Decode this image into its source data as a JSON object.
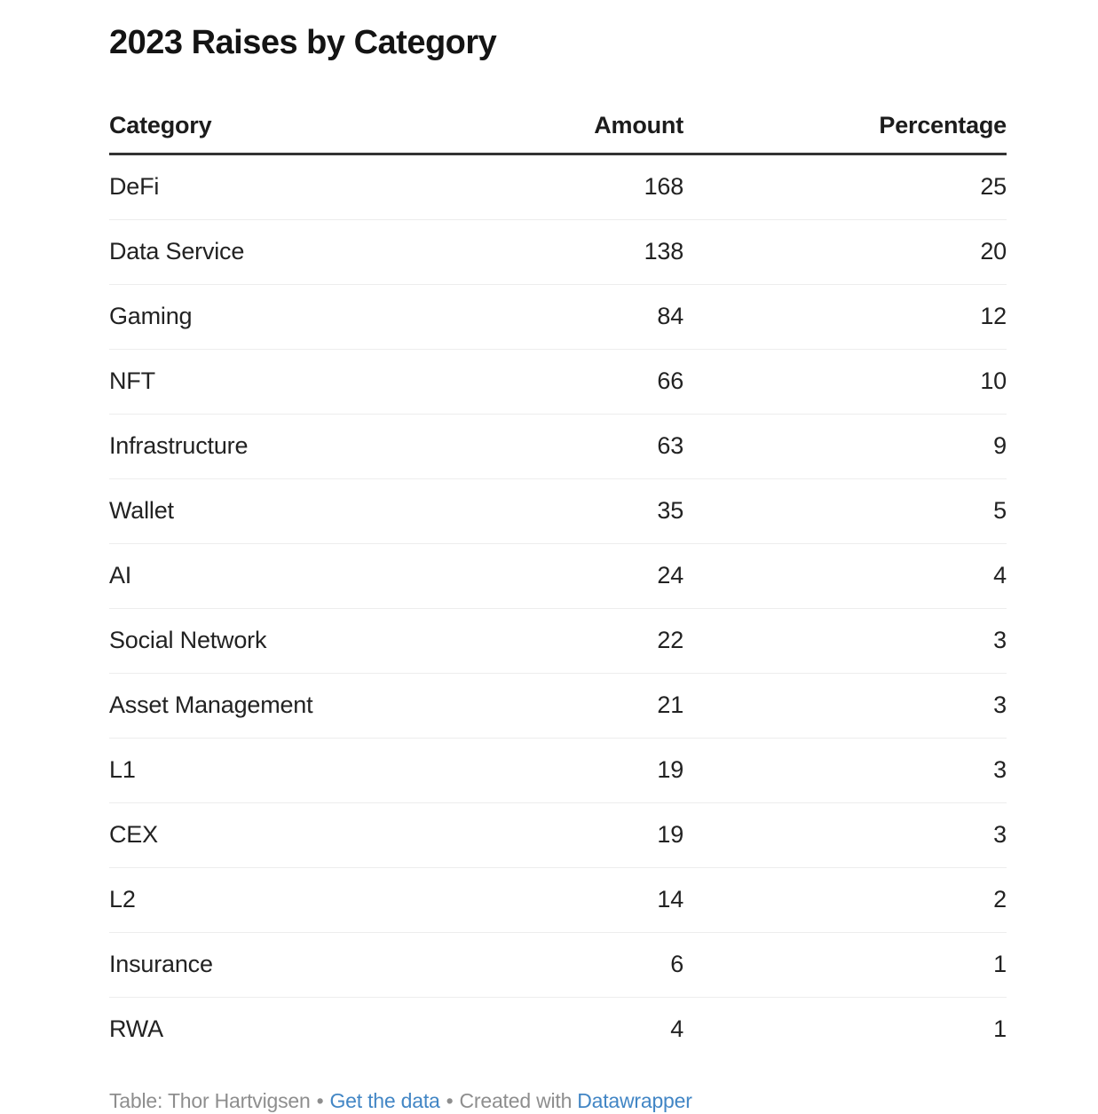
{
  "title": "2023 Raises by Category",
  "chart_data": {
    "type": "table",
    "title": "2023 Raises by Category",
    "columns": [
      "Category",
      "Amount",
      "Percentage"
    ],
    "column_align": [
      "left",
      "right",
      "right"
    ],
    "rows": [
      [
        "DeFi",
        168,
        25
      ],
      [
        "Data Service",
        138,
        20
      ],
      [
        "Gaming",
        84,
        12
      ],
      [
        "NFT",
        66,
        10
      ],
      [
        "Infrastructure",
        63,
        9
      ],
      [
        "Wallet",
        35,
        5
      ],
      [
        "AI",
        24,
        4
      ],
      [
        "Social Network",
        22,
        3
      ],
      [
        "Asset Management",
        21,
        3
      ],
      [
        "L1",
        19,
        3
      ],
      [
        "CEX",
        19,
        3
      ],
      [
        "L2",
        14,
        2
      ],
      [
        "Insurance",
        6,
        1
      ],
      [
        "RWA",
        4,
        1
      ]
    ]
  },
  "footer": {
    "credit": "Table: Thor Hartvigsen",
    "separator": "•",
    "get_data_link": "Get the data",
    "created_with": "Created with",
    "datawrapper_link": "Datawrapper"
  },
  "colors": {
    "background": "#ffffff",
    "title_text": "#141414",
    "body_text": "#222222",
    "muted_text": "#8e8e8e",
    "link": "#4286c5",
    "header_rule": "#333333",
    "row_rule": "#ededed"
  }
}
